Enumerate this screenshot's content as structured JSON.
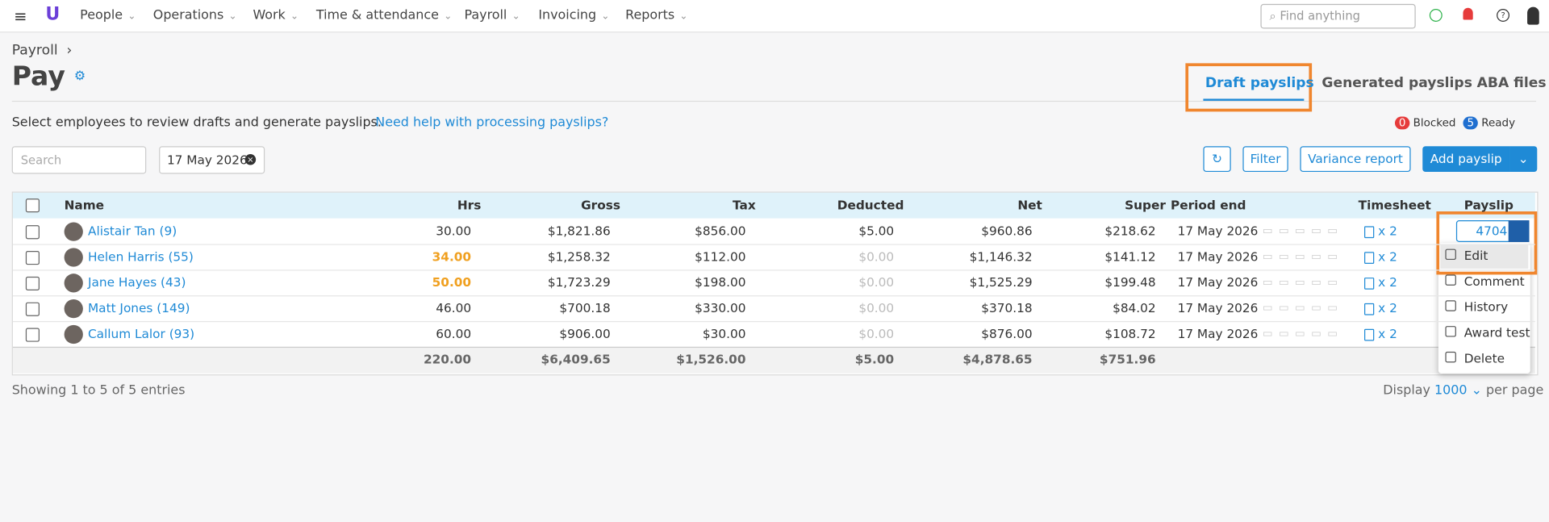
{
  "nav": {
    "items": [
      "People",
      "Operations",
      "Work",
      "Time & attendance",
      "Payroll",
      "Invoicing",
      "Reports"
    ],
    "search_placeholder": "Find anything"
  },
  "header": {
    "breadcrumb": "Payroll",
    "title": "Pay",
    "tabs": [
      "Draft payslips",
      "Generated payslips",
      "ABA files"
    ],
    "description": "Select employees to review drafts and generate payslips.",
    "help_link": "Need help with processing payslips?",
    "blocked_count": "0",
    "blocked_label": "Blocked",
    "ready_count": "5",
    "ready_label": "Ready"
  },
  "toolbar": {
    "search_placeholder": "Search",
    "date": "17 May 2026",
    "filter": "Filter",
    "variance": "Variance report",
    "add": "Add payslip"
  },
  "table": {
    "columns": [
      "Name",
      "Hrs",
      "Gross",
      "Tax",
      "Deducted",
      "Net",
      "Super",
      "Period end",
      "Timesheet",
      "Payslip"
    ],
    "rows": [
      {
        "name": "Alistair Tan (9)",
        "hrs": "30.00",
        "gross": "$1,821.86",
        "tax": "$856.00",
        "deducted": "$5.00",
        "net": "$960.86",
        "super": "$218.62",
        "period": "17 May 2026",
        "timesheet": "x 2",
        "payslip": "4704"
      },
      {
        "name": "Helen Harris (55)",
        "hrs": "34.00",
        "flagged": true,
        "gross": "$1,258.32",
        "tax": "$112.00",
        "deducted": "$0.00",
        "muted": true,
        "net": "$1,146.32",
        "super": "$141.12",
        "period": "17 May 2026",
        "timesheet": "x 2"
      },
      {
        "name": "Jane Hayes (43)",
        "hrs": "50.00",
        "flagged": true,
        "gross": "$1,723.29",
        "tax": "$198.00",
        "deducted": "$0.00",
        "muted": true,
        "net": "$1,525.29",
        "super": "$199.48",
        "period": "17 May 2026",
        "timesheet": "x 2"
      },
      {
        "name": "Matt Jones (149)",
        "hrs": "46.00",
        "gross": "$700.18",
        "tax": "$330.00",
        "deducted": "$0.00",
        "muted": true,
        "net": "$370.18",
        "super": "$84.02",
        "period": "17 May 2026",
        "timesheet": "x 2"
      },
      {
        "name": "Callum Lalor (93)",
        "hrs": "60.00",
        "gross": "$906.00",
        "tax": "$30.00",
        "deducted": "$0.00",
        "muted": true,
        "net": "$876.00",
        "super": "$108.72",
        "period": "17 May 2026",
        "timesheet": "x 2"
      }
    ],
    "totals": {
      "hrs": "220.00",
      "gross": "$6,409.65",
      "tax": "$1,526.00",
      "deducted": "$5.00",
      "net": "$4,878.65",
      "super": "$751.96"
    }
  },
  "menu": [
    "Edit",
    "Comment",
    "History",
    "Award test",
    "Delete"
  ],
  "footer": {
    "showing": "Showing 1 to 5 of 5 entries",
    "display": "Display",
    "page_size": "1000",
    "per_page": "per page"
  }
}
